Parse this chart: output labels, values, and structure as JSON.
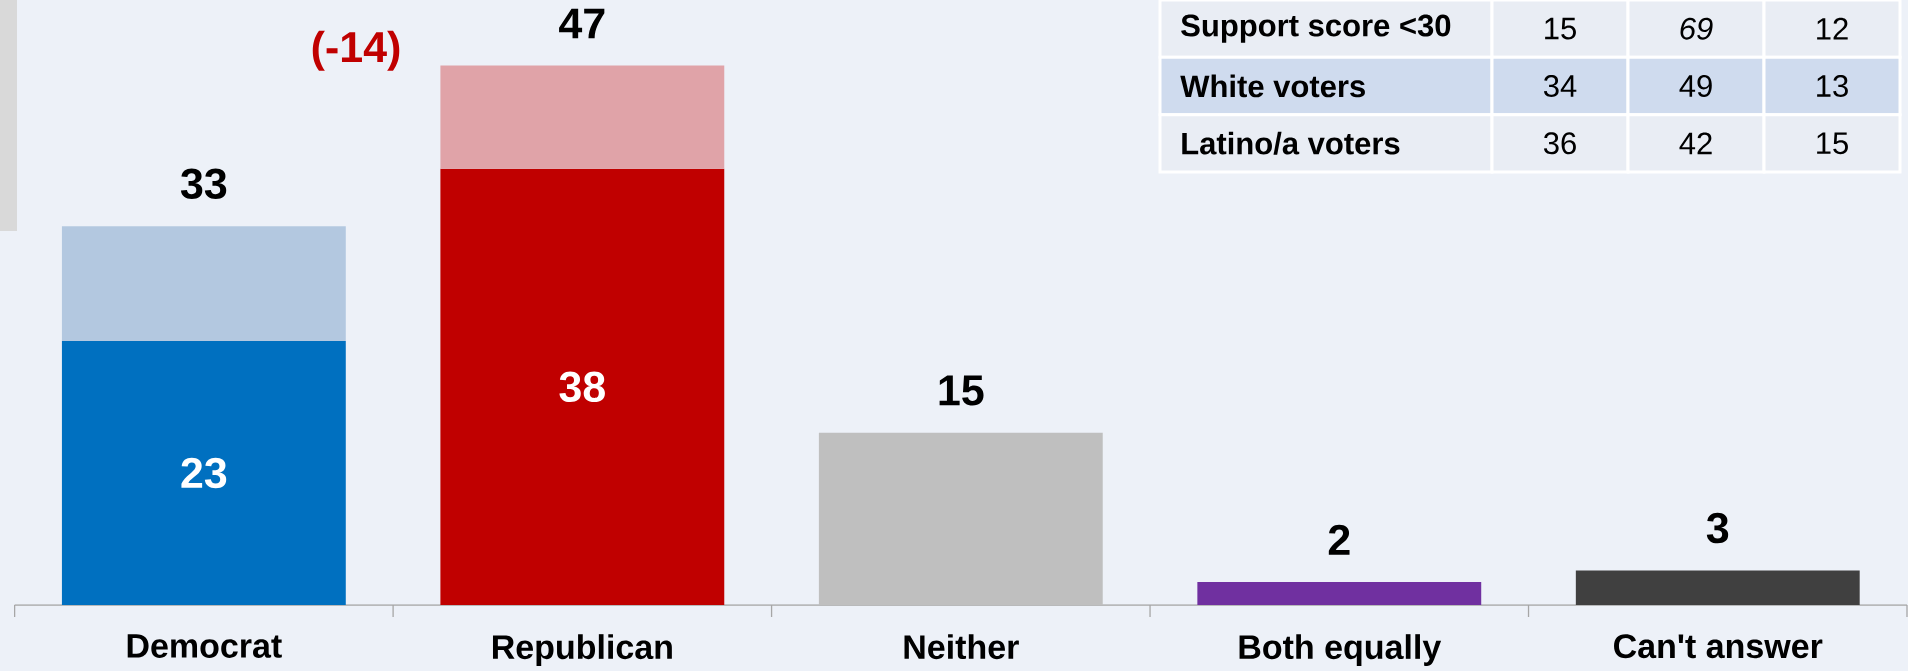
{
  "chart_data": [
    {
      "type": "bar",
      "categories": [
        "Democrat",
        "Republican",
        "Neither",
        "Both equally",
        "Can't answer"
      ],
      "stacked": true,
      "ylim": [
        0,
        52.7
      ],
      "tick_labels": "x",
      "series": [
        {
          "colors": [
            "#0070c0",
            "#c00000",
            "#bfbfbf",
            "#7030a0",
            "#404040"
          ],
          "values": [
            23,
            38,
            15,
            2,
            3
          ],
          "value_labels": [
            "23",
            "38",
            null,
            null,
            null
          ]
        },
        {
          "colors": [
            "#b3c8e0",
            "#e0a3a8",
            null,
            null,
            null
          ],
          "values": [
            10,
            9,
            null,
            null,
            null
          ]
        }
      ],
      "totals": [
        "33",
        "47",
        "15",
        "2",
        "3"
      ],
      "annotations": [
        "(-14)"
      ]
    },
    {
      "type": "other",
      "annotations": [
        "Support score <30",
        "15",
        "*69*",
        "12",
        "White voters",
        "34",
        "49",
        "13",
        "Latino/a voters",
        "36",
        "42",
        "15"
      ]
    }
  ]
}
